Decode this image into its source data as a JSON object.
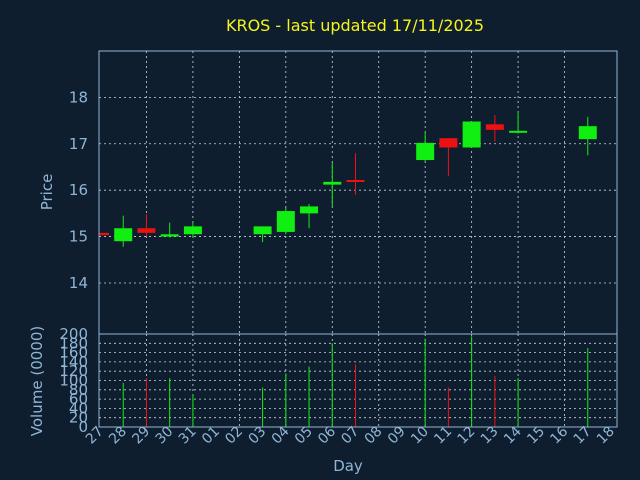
{
  "chart_data": {
    "type": "candlestick",
    "title": "KROS - last updated 17/11/2025",
    "xlabel": "Day",
    "price_panel": {
      "ylabel": "Price",
      "ylim": [
        12.9,
        19.0
      ],
      "yticks": [
        "14",
        "15",
        "16",
        "17",
        "18"
      ]
    },
    "volume_panel": {
      "ylabel": "Volume (0000)",
      "ylim": [
        0,
        200
      ],
      "yticks": [
        "0",
        "20",
        "40",
        "60",
        "80",
        "100",
        "120",
        "140",
        "160",
        "180",
        "200"
      ]
    },
    "x_labels": [
      "27",
      "28",
      "29",
      "30",
      "31",
      "01",
      "02",
      "03",
      "04",
      "05",
      "06",
      "07",
      "08",
      "09",
      "10",
      "11",
      "12",
      "13",
      "14",
      "15",
      "16",
      "17",
      "18"
    ],
    "candles": [
      {
        "day": "27",
        "open": 15.08,
        "close": 15.03,
        "high": 15.08,
        "low": 15.03,
        "volume": 0
      },
      {
        "day": "28",
        "open": 14.9,
        "close": 15.18,
        "high": 15.45,
        "low": 14.78,
        "volume": 95
      },
      {
        "day": "29",
        "open": 15.18,
        "close": 15.08,
        "high": 15.48,
        "low": 15.0,
        "volume": 105
      },
      {
        "day": "30",
        "open": 15.0,
        "close": 15.05,
        "high": 15.3,
        "low": 14.98,
        "volume": 105
      },
      {
        "day": "31",
        "open": 15.05,
        "close": 15.22,
        "high": 15.3,
        "low": 14.98,
        "volume": 70
      },
      {
        "day": "03",
        "open": 15.05,
        "close": 15.22,
        "high": 15.22,
        "low": 14.88,
        "volume": 85
      },
      {
        "day": "04",
        "open": 15.1,
        "close": 15.55,
        "high": 15.62,
        "low": 15.05,
        "volume": 115
      },
      {
        "day": "05",
        "open": 15.5,
        "close": 15.65,
        "high": 15.7,
        "low": 15.18,
        "volume": 130
      },
      {
        "day": "06",
        "open": 16.12,
        "close": 16.18,
        "high": 16.6,
        "low": 15.65,
        "volume": 180
      },
      {
        "day": "07",
        "open": 16.22,
        "close": 16.18,
        "high": 16.8,
        "low": 15.9,
        "volume": 135
      },
      {
        "day": "10",
        "open": 16.65,
        "close": 17.02,
        "high": 17.25,
        "low": 16.62,
        "volume": 190
      },
      {
        "day": "11",
        "open": 17.12,
        "close": 16.92,
        "high": 17.12,
        "low": 16.3,
        "volume": 85
      },
      {
        "day": "12",
        "open": 16.92,
        "close": 17.48,
        "high": 17.48,
        "low": 16.92,
        "volume": 195
      },
      {
        "day": "13",
        "open": 17.42,
        "close": 17.3,
        "high": 17.62,
        "low": 17.05,
        "volume": 110
      },
      {
        "day": "14",
        "open": 17.25,
        "close": 17.28,
        "high": 17.68,
        "low": 17.22,
        "volume": 105
      },
      {
        "day": "17",
        "open": 17.1,
        "close": 17.38,
        "high": 17.58,
        "low": 16.75,
        "volume": 170
      }
    ],
    "colors": {
      "up": "#11ee11",
      "down": "#ee1111",
      "background": "#0f1e2e",
      "title": "#f5f51a",
      "axis_text": "#8fb6d6",
      "grid": "#c8d6e4"
    },
    "grid": true
  }
}
